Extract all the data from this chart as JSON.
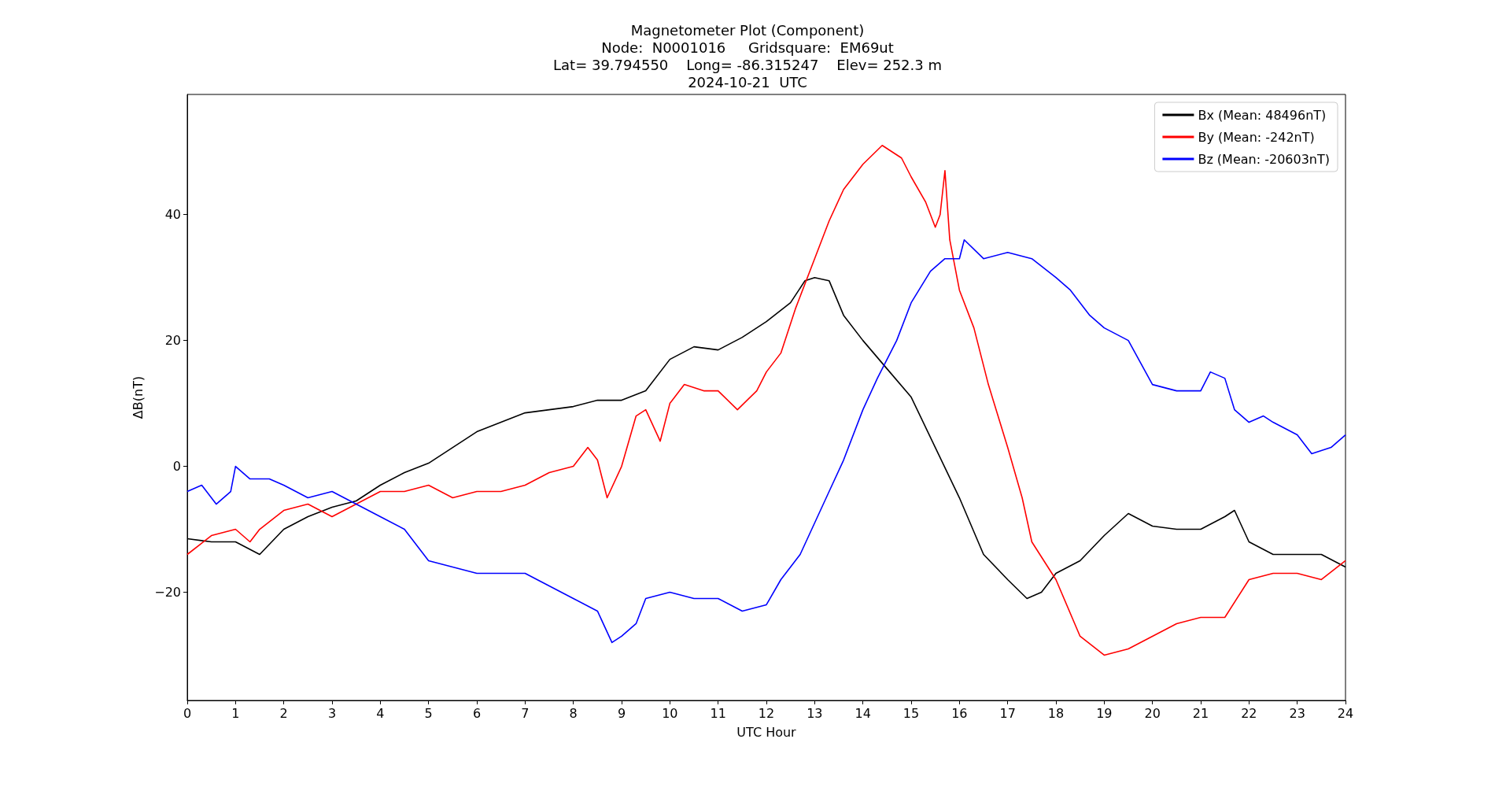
{
  "chart_data": {
    "type": "line",
    "title": "Magnetometer Plot (Component)\nNode:  N0001016     Gridsquare:  EM69ut\nLat= 39.794550    Long= -86.315247    Elev= 252.3 m\n2024-10-21  UTC",
    "xlabel": "UTC Hour",
    "ylabel": "ΔB(nT)",
    "xlim": [
      0,
      24
    ],
    "xticks": [
      0,
      1,
      2,
      3,
      4,
      5,
      6,
      7,
      8,
      9,
      10,
      11,
      12,
      13,
      14,
      15,
      16,
      17,
      18,
      19,
      20,
      21,
      22,
      23,
      24
    ],
    "ylim": [
      -37.2,
      59.1
    ],
    "yticks": [
      -20,
      0,
      20,
      40
    ],
    "grid": false,
    "legend": "top right",
    "line_style": "solid",
    "series": [
      {
        "name": "Bx (Mean: 48496nT)",
        "color": "#000000",
        "x": [
          0,
          0.5,
          1,
          1.5,
          2,
          2.5,
          3,
          3.5,
          4,
          4.5,
          5,
          5.5,
          6,
          6.5,
          7,
          7.5,
          8,
          8.5,
          9,
          9.5,
          10,
          10.5,
          11,
          11.5,
          12,
          12.5,
          12.8,
          13,
          13.3,
          13.6,
          14,
          14.5,
          15,
          15.5,
          16,
          16.5,
          17,
          17.4,
          17.7,
          18,
          18.5,
          19,
          19.5,
          20,
          20.5,
          21,
          21.5,
          21.7,
          22,
          22.5,
          23,
          23.5,
          24
        ],
        "values": [
          -11.5,
          -12,
          -12,
          -14,
          -10,
          -8,
          -6.5,
          -5.5,
          -3,
          -1,
          0.5,
          3,
          5.5,
          7,
          8.5,
          9,
          9.5,
          10.5,
          10.5,
          12,
          17,
          19,
          18.5,
          20.5,
          23,
          26,
          29.5,
          30,
          29.5,
          24,
          20,
          15.5,
          11,
          3,
          -5,
          -14,
          -18,
          -21,
          -20,
          -17,
          -15,
          -11,
          -7.5,
          -9.5,
          -10,
          -10,
          -8,
          -7,
          -12,
          -14,
          -14,
          -14,
          -16
        ]
      },
      {
        "name": "By (Mean: -242nT)",
        "color": "#ff0000",
        "x": [
          0,
          0.5,
          1,
          1.3,
          1.5,
          2,
          2.5,
          3,
          3.5,
          4,
          4.5,
          5,
          5.5,
          6,
          6.5,
          7,
          7.5,
          8,
          8.3,
          8.5,
          8.7,
          9,
          9.3,
          9.5,
          9.8,
          10,
          10.3,
          10.7,
          11,
          11.4,
          11.8,
          12,
          12.3,
          12.6,
          13,
          13.3,
          13.6,
          14,
          14.4,
          14.8,
          15,
          15.3,
          15.5,
          15.6,
          15.7,
          15.8,
          16,
          16.3,
          16.6,
          17,
          17.3,
          17.5,
          18,
          18.5,
          19,
          19.5,
          20,
          20.5,
          21,
          21.5,
          22,
          22.5,
          23,
          23.5,
          24
        ],
        "values": [
          -14,
          -11,
          -10,
          -12,
          -10,
          -7,
          -6,
          -8,
          -6,
          -4,
          -4,
          -3,
          -5,
          -4,
          -4,
          -3,
          -1,
          0,
          3,
          1,
          -5,
          0,
          8,
          9,
          4,
          10,
          13,
          12,
          12,
          9,
          12,
          15,
          18,
          25,
          33,
          39,
          44,
          48,
          51,
          49,
          46,
          42,
          38,
          40,
          47,
          36,
          28,
          22,
          13,
          3,
          -5,
          -12,
          -18,
          -27,
          -30,
          -29,
          -27,
          -25,
          -24,
          -24,
          -18,
          -17,
          -17,
          -18,
          -15
        ]
      },
      {
        "name": "Bz (Mean: -20603nT)",
        "color": "#0000ff",
        "x": [
          0,
          0.3,
          0.6,
          0.9,
          1,
          1.3,
          1.7,
          2,
          2.5,
          3,
          3.5,
          4,
          4.5,
          4.8,
          5,
          5.5,
          6,
          6.5,
          7,
          7.5,
          8,
          8.5,
          8.8,
          9,
          9.3,
          9.5,
          10,
          10.5,
          11,
          11.5,
          12,
          12.3,
          12.7,
          13,
          13.3,
          13.6,
          14,
          14.3,
          14.7,
          15,
          15.4,
          15.7,
          16,
          16.1,
          16.5,
          17,
          17.5,
          18,
          18.3,
          18.7,
          19,
          19.5,
          20,
          20.5,
          21,
          21.2,
          21.5,
          21.7,
          22,
          22.3,
          22.5,
          23,
          23.3,
          23.7,
          24
        ],
        "values": [
          -4,
          -3,
          -6,
          -4,
          0,
          -2,
          -2,
          -3,
          -5,
          -4,
          -6,
          -8,
          -10,
          -13,
          -15,
          -16,
          -17,
          -17,
          -17,
          -19,
          -21,
          -23,
          -28,
          -27,
          -25,
          -21,
          -20,
          -21,
          -21,
          -23,
          -22,
          -18,
          -14,
          -9,
          -4,
          1,
          9,
          14,
          20,
          26,
          31,
          33,
          33,
          36,
          33,
          34,
          33,
          30,
          28,
          24,
          22,
          20,
          13,
          12,
          12,
          15,
          14,
          9,
          7,
          8,
          7,
          5,
          2,
          3,
          5
        ]
      }
    ]
  }
}
